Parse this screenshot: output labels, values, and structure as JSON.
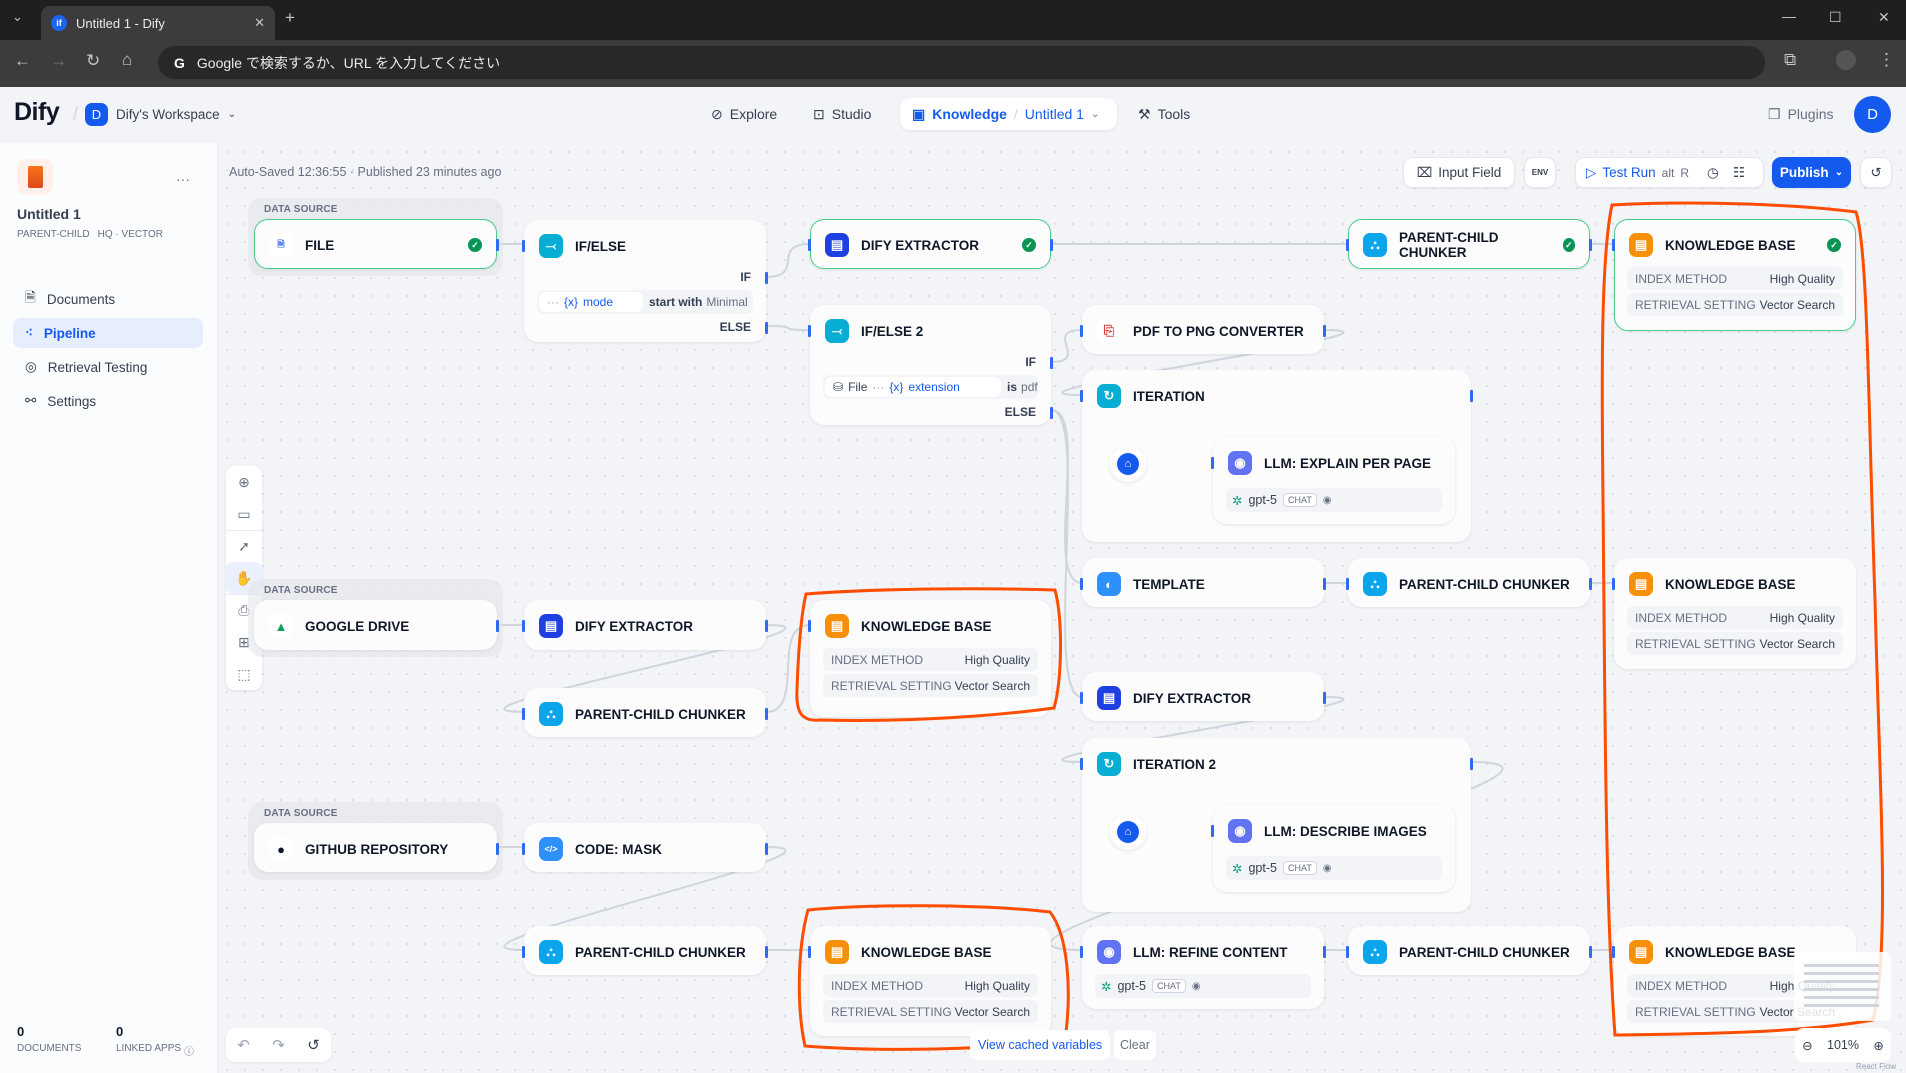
{
  "browser": {
    "tab_title": "Untitled 1 - Dify",
    "favicon": "if",
    "omnibox_placeholder": "Google で検索するか、URL を入力してください"
  },
  "header": {
    "logo": "Dify",
    "workspace_initial": "D",
    "workspace": "Dify's Workspace",
    "nav": {
      "explore": "Explore",
      "studio": "Studio",
      "knowledge": "Knowledge",
      "dataset": "Untitled 1",
      "tools": "Tools"
    },
    "plugins": "Plugins",
    "avatar": "D"
  },
  "sidebar": {
    "title": "Untitled 1",
    "tag1": "PARENT-CHILD",
    "tag2": "HQ · VECTOR",
    "more": "···",
    "items": [
      {
        "label": "Documents",
        "icon": "document-icon"
      },
      {
        "label": "Pipeline",
        "icon": "pipeline-icon",
        "active": true
      },
      {
        "label": "Retrieval Testing",
        "icon": "target-icon"
      },
      {
        "label": "Settings",
        "icon": "settings-icon"
      }
    ],
    "stats": {
      "documents_count": "0",
      "documents_label": "DOCUMENTS",
      "linked_count": "0",
      "linked_label": "LINKED APPS"
    }
  },
  "canvas": {
    "autosave": "Auto-Saved 12:36:55 · Published 23 minutes ago",
    "toolbar": {
      "input_field": "Input Field",
      "env": "ENV",
      "test_run": "Test Run",
      "key1": "alt",
      "key2": "R",
      "publish": "Publish"
    },
    "footer": {
      "view_cached": "View cached variables",
      "clear": "Clear",
      "zoom": "101%",
      "attribution": "React Flow"
    },
    "data_source_label": "DATA SOURCE",
    "colors": {
      "accent": "#155aef",
      "annotation": "#ff4d00",
      "success": "#079455"
    }
  },
  "kb_rows": {
    "index_label": "INDEX METHOD",
    "index_value": "High Quality",
    "retrieval_label": "RETRIEVAL SETTING",
    "retrieval_value": "Vector Search"
  },
  "nodes": [
    {
      "id": "file",
      "type": "source",
      "title": "FILE",
      "icon": "file-icon",
      "checked": true
    },
    {
      "id": "ifelse1",
      "type": "ifelse",
      "title": "IF/ELSE",
      "icon": "branch-icon",
      "if": "IF",
      "else": "ELSE",
      "cond": {
        "prefix": "···",
        "var": "mode",
        "op": "start with",
        "value": "Minimal"
      }
    },
    {
      "id": "ext1",
      "type": "extractor",
      "title": "DIFY EXTRACTOR",
      "icon": "extractor-icon",
      "checked": true
    },
    {
      "id": "pcc1",
      "type": "chunker",
      "title": "PARENT-CHILD CHUNKER",
      "icon": "chunker-icon",
      "checked": true
    },
    {
      "id": "kb1",
      "type": "kb",
      "title": "KNOWLEDGE BASE",
      "icon": "knowledge-base-icon",
      "checked": true
    },
    {
      "id": "ifelse2",
      "type": "ifelse",
      "title": "IF/ELSE 2",
      "icon": "branch-icon",
      "if": "IF",
      "else": "ELSE",
      "cond": {
        "source": "File",
        "prefix": "···",
        "var": "extension",
        "op": "is",
        "value": "pdf"
      }
    },
    {
      "id": "pdf",
      "type": "tool",
      "title": "PDF TO PNG CONVERTER",
      "icon": "pdf-icon"
    },
    {
      "id": "iter1",
      "type": "iteration",
      "title": "ITERATION",
      "icon": "iteration-icon",
      "child": {
        "title": "LLM: EXPLAIN PER PAGE",
        "model": "gpt-5",
        "mode": "CHAT"
      }
    },
    {
      "id": "tpl",
      "type": "template",
      "title": "TEMPLATE",
      "icon": "template-icon"
    },
    {
      "id": "pcc2",
      "type": "chunker",
      "title": "PARENT-CHILD CHUNKER",
      "icon": "chunker-icon"
    },
    {
      "id": "kb2",
      "type": "kb",
      "title": "KNOWLEDGE BASE",
      "icon": "knowledge-base-icon"
    },
    {
      "id": "gdrive",
      "type": "source",
      "title": "GOOGLE DRIVE",
      "icon": "google-drive-icon"
    },
    {
      "id": "ext2",
      "type": "extractor",
      "title": "DIFY EXTRACTOR",
      "icon": "extractor-icon"
    },
    {
      "id": "kb3",
      "type": "kb",
      "title": "KNOWLEDGE BASE",
      "icon": "knowledge-base-icon"
    },
    {
      "id": "pcc3",
      "type": "chunker",
      "title": "PARENT-CHILD CHUNKER",
      "icon": "chunker-icon"
    },
    {
      "id": "ext3",
      "type": "extractor",
      "title": "DIFY EXTRACTOR",
      "icon": "extractor-icon"
    },
    {
      "id": "iter2",
      "type": "iteration",
      "title": "ITERATION 2",
      "icon": "iteration-icon",
      "child": {
        "title": "LLM: DESCRIBE IMAGES",
        "model": "gpt-5",
        "mode": "CHAT"
      }
    },
    {
      "id": "github",
      "type": "source",
      "title": "GITHUB REPOSITORY",
      "icon": "github-icon"
    },
    {
      "id": "code",
      "type": "code",
      "title": "CODE: MASK",
      "icon": "code-icon"
    },
    {
      "id": "pcc4",
      "type": "chunker",
      "title": "PARENT-CHILD CHUNKER",
      "icon": "chunker-icon"
    },
    {
      "id": "kb4",
      "type": "kb",
      "title": "KNOWLEDGE BASE",
      "icon": "knowledge-base-icon"
    },
    {
      "id": "llm",
      "type": "llm",
      "title": "LLM: REFINE CONTENT",
      "icon": "llm-icon",
      "model": "gpt-5",
      "mode": "CHAT"
    },
    {
      "id": "pcc5",
      "type": "chunker",
      "title": "PARENT-CHILD CHUNKER",
      "icon": "chunker-icon"
    },
    {
      "id": "kb5",
      "type": "kb",
      "title": "KNOWLEDGE BASE",
      "icon": "knowledge-base-icon"
    }
  ]
}
